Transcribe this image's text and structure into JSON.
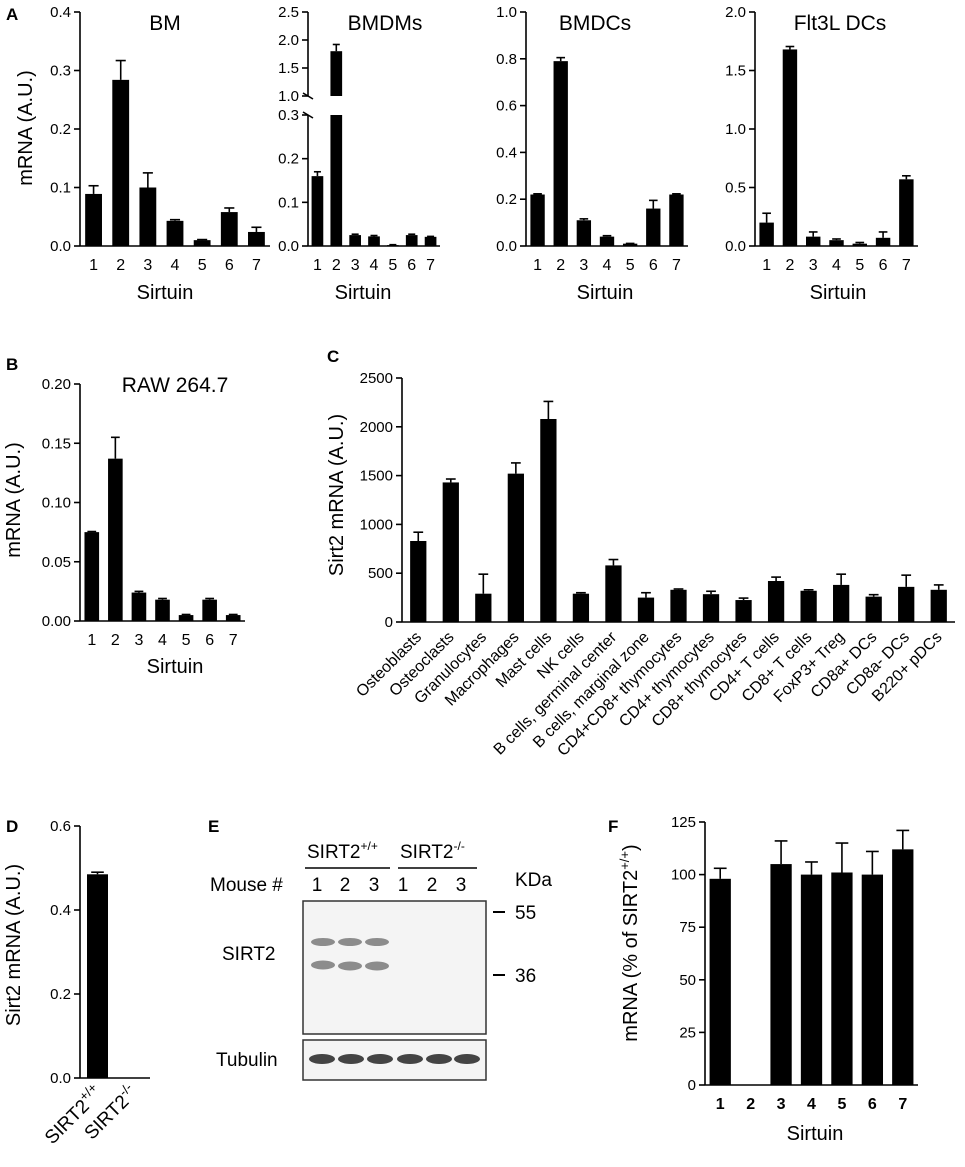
{
  "chart_data": [
    {
      "id": "A1",
      "panel_label": "A",
      "type": "bar",
      "title": "BM",
      "xlabel": "Sirtuin",
      "ylabel": "mRNA  (A.U.)",
      "categories": [
        "1",
        "2",
        "3",
        "4",
        "5",
        "6",
        "7"
      ],
      "values": [
        0.089,
        0.284,
        0.1,
        0.043,
        0.01,
        0.058,
        0.024
      ],
      "errors": [
        0.014,
        0.033,
        0.025,
        0.002,
        0.001,
        0.007,
        0.008
      ],
      "ylim": [
        0,
        0.4
      ],
      "yticks": [
        "0.0",
        "0.1",
        "0.2",
        "0.3",
        "0.4"
      ]
    },
    {
      "id": "A2",
      "panel_label": "",
      "type": "bar",
      "title": "BMDMs",
      "xlabel": "Sirtuin",
      "ylabel": "",
      "categories": [
        "1",
        "2",
        "3",
        "4",
        "5",
        "6",
        "7"
      ],
      "values": [
        0.16,
        1.8,
        0.025,
        0.022,
        0.002,
        0.025,
        0.021
      ],
      "errors": [
        0.01,
        0.12,
        0.002,
        0.002,
        0.001,
        0.002,
        0.001
      ],
      "ylim": [
        0,
        2.5
      ],
      "axis_break": [
        0.3,
        1.0
      ],
      "yticks_lower": [
        "0.0",
        "0.1",
        "0.2",
        "0.3"
      ],
      "yticks_upper": [
        "1.0",
        "1.5",
        "2.0",
        "2.5"
      ]
    },
    {
      "id": "A3",
      "panel_label": "",
      "type": "bar",
      "title": "BMDCs",
      "xlabel": "Sirtuin",
      "ylabel": "",
      "categories": [
        "1",
        "2",
        "3",
        "4",
        "5",
        "6",
        "7"
      ],
      "values": [
        0.22,
        0.79,
        0.11,
        0.04,
        0.01,
        0.16,
        0.22
      ],
      "errors": [
        0.003,
        0.015,
        0.006,
        0.004,
        0.001,
        0.035,
        0.003
      ],
      "ylim": [
        0,
        1.0
      ],
      "yticks": [
        "0.0",
        "0.2",
        "0.4",
        "0.6",
        "0.8",
        "1.0"
      ]
    },
    {
      "id": "A4",
      "panel_label": "",
      "type": "bar",
      "title": "Flt3L DCs",
      "xlabel": "Sirtuin",
      "ylabel": "",
      "categories": [
        "1",
        "2",
        "3",
        "4",
        "5",
        "6",
        "7"
      ],
      "values": [
        0.2,
        1.68,
        0.08,
        0.05,
        0.02,
        0.07,
        0.57
      ],
      "errors": [
        0.08,
        0.025,
        0.04,
        0.01,
        0.01,
        0.05,
        0.03
      ],
      "ylim": [
        0,
        2.0
      ],
      "yticks": [
        "0.0",
        "0.5",
        "1.0",
        "1.5",
        "2.0"
      ]
    },
    {
      "id": "B",
      "panel_label": "B",
      "type": "bar",
      "title": "RAW 264.7",
      "xlabel": "Sirtuin",
      "ylabel": "mRNA  (A.U.)",
      "categories": [
        "1",
        "2",
        "3",
        "4",
        "5",
        "6",
        "7"
      ],
      "values": [
        0.075,
        0.137,
        0.024,
        0.018,
        0.005,
        0.018,
        0.005
      ],
      "errors": [
        0.0005,
        0.018,
        0.001,
        0.001,
        0.0005,
        0.001,
        0.0005
      ],
      "ylim": [
        0,
        0.2
      ],
      "yticks": [
        "0.00",
        "0.05",
        "0.10",
        "0.15",
        "0.20"
      ]
    },
    {
      "id": "C",
      "panel_label": "C",
      "type": "bar",
      "title": "",
      "xlabel": "",
      "ylabel": "Sirt2 mRNA  (A.U.)",
      "categories": [
        "Osteoblasts",
        "Osteoclasts",
        "Granulocytes",
        "Macrophages",
        "Mast cells",
        "NK cells",
        "B cells, germinal center",
        "B cells, marginal zone",
        "CD4+CD8+ thymocytes",
        "CD4+ thymocytes",
        "CD8+ thymocytes",
        "CD4+ T cells",
        "CD8+ T cells",
        "FoxP3+ Treg",
        "CD8a+ DCs",
        "CD8a- DCs",
        "B220+ pDCs"
      ],
      "values": [
        830,
        1430,
        290,
        1520,
        2080,
        290,
        580,
        250,
        330,
        285,
        225,
        420,
        320,
        380,
        260,
        360,
        330
      ],
      "errors": [
        90,
        35,
        200,
        110,
        180,
        10,
        60,
        50,
        8,
        30,
        20,
        40,
        10,
        110,
        20,
        120,
        50
      ],
      "ylim": [
        0,
        2500
      ],
      "yticks": [
        "0",
        "500",
        "1000",
        "1500",
        "2000",
        "2500"
      ]
    },
    {
      "id": "D",
      "panel_label": "D",
      "type": "bar",
      "title": "",
      "xlabel": "",
      "ylabel": "Sirt2 mRNA (A.U.)",
      "categories": [
        {
          "main": "SIRT2",
          "sup": "+/+"
        },
        {
          "main": "SIRT2",
          "sup": "-/-"
        }
      ],
      "values": [
        0.485,
        0.0
      ],
      "errors": [
        0.005,
        0.0
      ],
      "ylim": [
        0,
        0.6
      ],
      "yticks": [
        "0.0",
        "0.2",
        "0.4",
        "0.6"
      ]
    },
    {
      "id": "F",
      "panel_label": "F",
      "type": "bar",
      "title": "",
      "xlabel": "Sirtuin",
      "ylabel_main": "mRNA  (% of SIRT2",
      "ylabel_sup": "+/+",
      "ylabel_end": ")",
      "categories": [
        "1",
        "2",
        "3",
        "4",
        "5",
        "6",
        "7"
      ],
      "values": [
        98,
        0,
        105,
        100,
        101,
        100,
        112
      ],
      "errors": [
        5,
        0,
        11,
        6,
        14,
        11,
        9
      ],
      "ylim": [
        0,
        125
      ],
      "yticks": [
        "0",
        "25",
        "50",
        "75",
        "100",
        "125"
      ]
    }
  ],
  "western_blot": {
    "panel_label": "E",
    "group_wt_main": "SIRT2",
    "group_wt_sup": "+/+",
    "group_ko_main": "SIRT2",
    "group_ko_sup": "-/-",
    "mouse_label": "Mouse #",
    "lanes": [
      "1",
      "2",
      "3",
      "1",
      "2",
      "3"
    ],
    "unit": "KDa",
    "markers": [
      "55",
      "36"
    ],
    "rows": [
      "SIRT2",
      "Tubulin"
    ]
  }
}
